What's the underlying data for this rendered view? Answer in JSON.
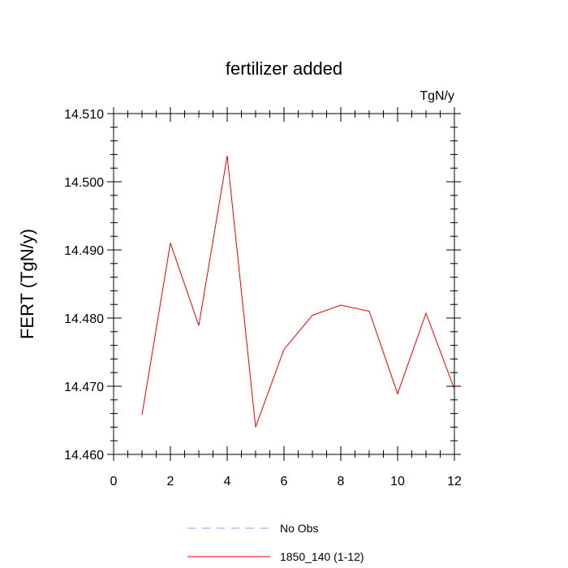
{
  "chart_data": {
    "type": "line",
    "title": "fertilizer added",
    "units_label": "TgN/y",
    "xlabel": "",
    "ylabel": "FERT  (TgN/y)",
    "xlim": [
      0,
      12
    ],
    "ylim": [
      14.46,
      14.51
    ],
    "xticks": [
      "0",
      "2",
      "4",
      "6",
      "8",
      "10",
      "12"
    ],
    "yticks": [
      "14.460",
      "14.470",
      "14.480",
      "14.490",
      "14.500",
      "14.510"
    ],
    "grid": false,
    "legend_position": "bottom",
    "series": [
      {
        "name": "No Obs",
        "color": "#9999ee",
        "dash": "dashed",
        "x": [],
        "values": []
      },
      {
        "name": "1850_140 (1-12)",
        "color": "#ee0000",
        "dash": "solid",
        "x": [
          1,
          2,
          3,
          4,
          5,
          6,
          7,
          8,
          9,
          10,
          11,
          12
        ],
        "values": [
          14.4658,
          14.491,
          14.4789,
          14.5038,
          14.464,
          14.4754,
          14.4804,
          14.4819,
          14.481,
          14.4689,
          14.4807,
          14.4696
        ]
      }
    ]
  }
}
